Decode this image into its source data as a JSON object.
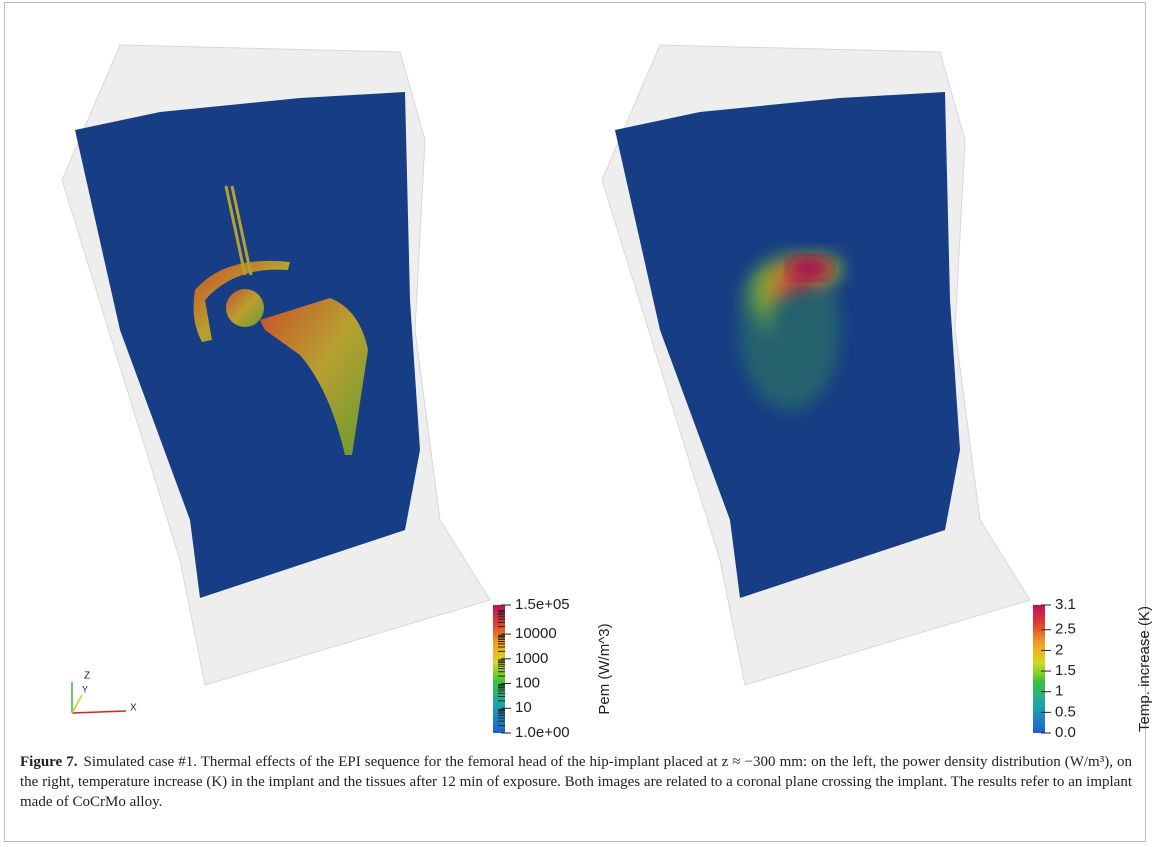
{
  "panels": [
    {
      "colorbar": {
        "label": "Pem (W/m^3)",
        "range": [
          1,
          150000
        ],
        "log": true,
        "ticks": [
          {
            "value": 150000,
            "label": "1.5e+05"
          },
          10000,
          1000,
          100,
          10,
          {
            "value": 1,
            "label": "1.0e+00"
          }
        ]
      },
      "axes": [
        "Z",
        "Y",
        "X"
      ]
    },
    {
      "colorbar": {
        "label": "Temp. increase (K)",
        "range": [
          0,
          3.1
        ],
        "log": false,
        "ticks": [
          3.1,
          2.5,
          2,
          1.5,
          1,
          0.5,
          {
            "value": 0,
            "label": "0.0"
          }
        ]
      }
    }
  ],
  "caption": {
    "figure_label": "Figure 7.",
    "text": "Simulated case #1. Thermal effects of the EPI sequence for the femoral head of the hip-implant placed at z ≈ −300 mm: on the left, the power density distribution (W/m³), on the right, temperature increase (K) in the implant and the tissues after 12 min of exposure. Both images are related to a coronal plane crossing the implant. The results refer to an implant made of CoCrMo alloy."
  }
}
